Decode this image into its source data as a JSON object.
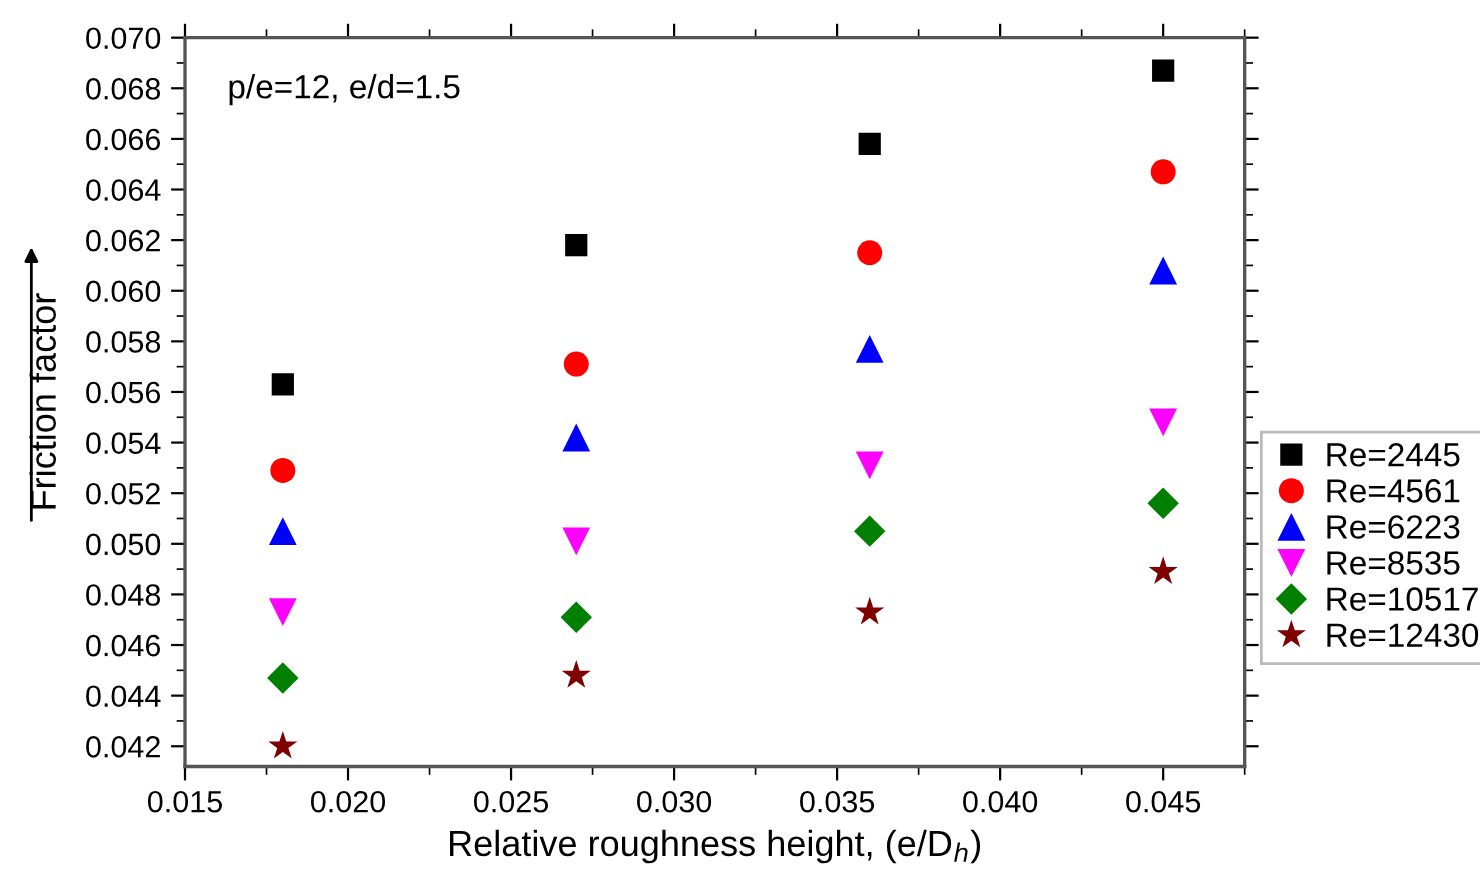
{
  "chart_data": {
    "type": "scatter",
    "xlabel": "Relative roughness height, (e/D$_{h}$)",
    "ylabel": "Friction factor",
    "annotations": [
      "p/e=12, e/d=1.5"
    ],
    "x": [
      0.018,
      0.027,
      0.036,
      0.045
    ],
    "series": [
      {
        "name": "Re=2445",
        "color": "#000000",
        "marker": "square",
        "values": [
          0.0563,
          0.0618,
          0.0658,
          0.0687
        ]
      },
      {
        "name": "Re=4561",
        "color": "#ff0000",
        "marker": "circle",
        "values": [
          0.0529,
          0.0571,
          0.0615,
          0.0647
        ]
      },
      {
        "name": "Re=6223",
        "color": "#0000ff",
        "marker": "triangle",
        "values": [
          0.0505,
          0.0542,
          0.0577,
          0.0608
        ]
      },
      {
        "name": "Re=8535",
        "color": "#ff00ff",
        "marker": "triangle_down",
        "values": [
          0.0473,
          0.0501,
          0.0531,
          0.0548
        ]
      },
      {
        "name": "Re=10517",
        "color": "#007f00",
        "marker": "diamond",
        "values": [
          0.0447,
          0.0471,
          0.0505,
          0.0516
        ]
      },
      {
        "name": "Re=12430",
        "color": "#7f0000",
        "marker": "star",
        "values": [
          0.042,
          0.0448,
          0.0473,
          0.0489
        ]
      }
    ],
    "xlim": [
      0.015,
      0.0475
    ],
    "xticks": [
      {
        "value": 0.015,
        "label": "0.015"
      },
      {
        "value": 0.02,
        "label": "0.020"
      },
      {
        "value": 0.025,
        "label": "0.025"
      },
      {
        "value": 0.03,
        "label": "0.030"
      },
      {
        "value": 0.035,
        "label": "0.035"
      },
      {
        "value": 0.04,
        "label": "0.040"
      },
      {
        "value": 0.045,
        "label": "0.045"
      }
    ],
    "ylim": [
      0.0412,
      0.07
    ],
    "yticks": [
      {
        "value": 0.042,
        "label": "0.042"
      },
      {
        "value": 0.044,
        "label": "0.044"
      },
      {
        "value": 0.046,
        "label": "0.046"
      },
      {
        "value": 0.048,
        "label": "0.048"
      },
      {
        "value": 0.05,
        "label": "0.050"
      },
      {
        "value": 0.052,
        "label": "0.052"
      },
      {
        "value": 0.054,
        "label": "0.054"
      },
      {
        "value": 0.056,
        "label": "0.056"
      },
      {
        "value": 0.058,
        "label": "0.058"
      },
      {
        "value": 0.06,
        "label": "0.060"
      },
      {
        "value": 0.062,
        "label": "0.062"
      },
      {
        "value": 0.064,
        "label": "0.064"
      },
      {
        "value": 0.066,
        "label": "0.066"
      },
      {
        "value": 0.068,
        "label": "0.068"
      },
      {
        "value": 0.07,
        "label": "0.070"
      }
    ],
    "grid": false,
    "legend": "right"
  }
}
